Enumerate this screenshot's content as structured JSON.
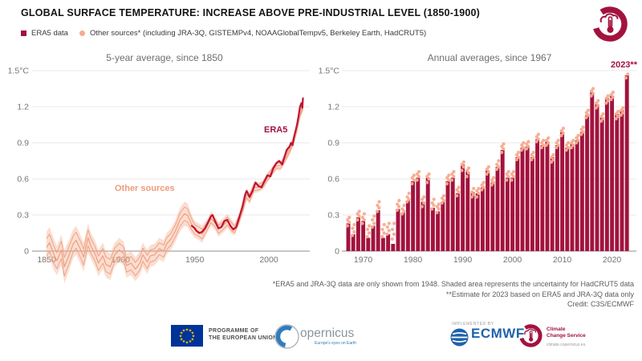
{
  "header": {
    "title": "GLOBAL SURFACE TEMPERATURE: INCREASE ABOVE PRE-INDUSTRIAL LEVEL (1850-1900)",
    "legend": [
      {
        "label": "ERA5 data",
        "marker": "square"
      },
      {
        "label": "Other sources* (including JRA-3Q, GISTEMPv4, NOAAGlobalTempv5, Berkeley Earth, HadCRUT5)",
        "marker": "dot"
      }
    ]
  },
  "colors": {
    "crimson": "#A3123E",
    "era5_line": "#C01334",
    "salmon_dot": "#F6AB8E",
    "other_line": "#EFA183",
    "band": "rgba(244,167,135,0.38)",
    "grid": "#e8e8e8",
    "axis": "#8f8f8f",
    "ecmwf_blue": "#1F63AD",
    "eu_blue": "#003399",
    "star_yellow": "#FFCC00",
    "copernicus_blue": "#2E7CC0"
  },
  "chart_data": [
    {
      "type": "line",
      "title": "5-year average, since 1850",
      "ylim": [
        -0.28,
        1.5
      ],
      "y_ticks": [
        {
          "v": 0,
          "label": "0"
        },
        {
          "v": 0.3,
          "label": "0.3"
        },
        {
          "v": 0.6,
          "label": "0.6"
        },
        {
          "v": 0.9,
          "label": "0.9"
        },
        {
          "v": 1.2,
          "label": "1.2"
        },
        {
          "v": 1.5,
          "label": "1.5°C"
        }
      ],
      "x_ticks": [
        1850,
        1900,
        1950,
        2000
      ],
      "era5_label": "ERA5",
      "other_label": "Other sources",
      "series": [
        {
          "name": "ERA5",
          "points": [
            [
              1948,
              0.21
            ],
            [
              1950,
              0.19
            ],
            [
              1951,
              0.17
            ],
            [
              1953,
              0.15
            ],
            [
              1955,
              0.16
            ],
            [
              1957,
              0.19
            ],
            [
              1959,
              0.24
            ],
            [
              1961,
              0.29
            ],
            [
              1962,
              0.3
            ],
            [
              1964,
              0.24
            ],
            [
              1966,
              0.19
            ],
            [
              1968,
              0.2
            ],
            [
              1970,
              0.25
            ],
            [
              1972,
              0.26
            ],
            [
              1974,
              0.21
            ],
            [
              1976,
              0.18
            ],
            [
              1978,
              0.2
            ],
            [
              1980,
              0.28
            ],
            [
              1982,
              0.36
            ],
            [
              1984,
              0.47
            ],
            [
              1985,
              0.5
            ],
            [
              1987,
              0.45
            ],
            [
              1989,
              0.5
            ],
            [
              1991,
              0.57
            ],
            [
              1993,
              0.54
            ],
            [
              1995,
              0.53
            ],
            [
              1997,
              0.58
            ],
            [
              1999,
              0.63
            ],
            [
              2001,
              0.62
            ],
            [
              2003,
              0.69
            ],
            [
              2005,
              0.73
            ],
            [
              2007,
              0.75
            ],
            [
              2009,
              0.72
            ],
            [
              2010,
              0.76
            ],
            [
              2012,
              0.84
            ],
            [
              2014,
              0.87
            ],
            [
              2015,
              0.9
            ],
            [
              2016,
              0.88
            ],
            [
              2017,
              0.95
            ],
            [
              2018,
              1.0
            ],
            [
              2019,
              1.05
            ],
            [
              2020,
              1.12
            ],
            [
              2021,
              1.2
            ],
            [
              2022,
              1.23
            ],
            [
              2022.6,
              1.19
            ],
            [
              2023,
              1.27
            ]
          ]
        },
        {
          "name": "Other sources (value, uncertainty)",
          "points": [
            [
              1850,
              0.03,
              0.13
            ],
            [
              1852,
              0.07,
              0.13
            ],
            [
              1855,
              -0.03,
              0.13
            ],
            [
              1857,
              -0.08,
              0.12
            ],
            [
              1860,
              0.01,
              0.13
            ],
            [
              1862,
              -0.13,
              0.14
            ],
            [
              1865,
              -0.04,
              0.13
            ],
            [
              1868,
              0.06,
              0.12
            ],
            [
              1870,
              0.09,
              0.12
            ],
            [
              1873,
              0.01,
              0.12
            ],
            [
              1875,
              -0.05,
              0.12
            ],
            [
              1878,
              0.11,
              0.12
            ],
            [
              1880,
              0.04,
              0.11
            ],
            [
              1883,
              -0.03,
              0.11
            ],
            [
              1885,
              -0.1,
              0.11
            ],
            [
              1888,
              -0.04,
              0.11
            ],
            [
              1890,
              -0.11,
              0.11
            ],
            [
              1893,
              -0.13,
              0.11
            ],
            [
              1896,
              -0.03,
              0.1
            ],
            [
              1899,
              0.01,
              0.1
            ],
            [
              1902,
              -0.02,
              0.1
            ],
            [
              1904,
              -0.12,
              0.1
            ],
            [
              1907,
              -0.1,
              0.1
            ],
            [
              1910,
              -0.15,
              0.1
            ],
            [
              1913,
              -0.1,
              0.1
            ],
            [
              1915,
              -0.03,
              0.1
            ],
            [
              1918,
              -0.09,
              0.1
            ],
            [
              1920,
              -0.04,
              0.09
            ],
            [
              1923,
              -0.03,
              0.09
            ],
            [
              1926,
              0.02,
              0.09
            ],
            [
              1929,
              0.0,
              0.09
            ],
            [
              1931,
              0.06,
              0.09
            ],
            [
              1934,
              0.1,
              0.09
            ],
            [
              1937,
              0.17,
              0.09
            ],
            [
              1940,
              0.26,
              0.1
            ],
            [
              1943,
              0.31,
              0.1
            ],
            [
              1945,
              0.3,
              0.1
            ],
            [
              1948,
              0.22,
              0.08
            ],
            [
              1950,
              0.18,
              0.07
            ],
            [
              1953,
              0.16,
              0.07
            ],
            [
              1955,
              0.14,
              0.07
            ],
            [
              1958,
              0.2,
              0.06
            ],
            [
              1961,
              0.27,
              0.06
            ],
            [
              1964,
              0.23,
              0.06
            ],
            [
              1966,
              0.18,
              0.06
            ],
            [
              1969,
              0.21,
              0.06
            ],
            [
              1972,
              0.25,
              0.06
            ],
            [
              1975,
              0.2,
              0.06
            ],
            [
              1977,
              0.18,
              0.05
            ],
            [
              1980,
              0.27,
              0.05
            ],
            [
              1983,
              0.38,
              0.05
            ],
            [
              1985,
              0.47,
              0.05
            ],
            [
              1987,
              0.44,
              0.05
            ],
            [
              1990,
              0.53,
              0.05
            ],
            [
              1993,
              0.53,
              0.04
            ],
            [
              1996,
              0.55,
              0.04
            ],
            [
              1999,
              0.61,
              0.04
            ],
            [
              2002,
              0.66,
              0.04
            ],
            [
              2005,
              0.71,
              0.04
            ],
            [
              2008,
              0.71,
              0.04
            ],
            [
              2011,
              0.77,
              0.04
            ],
            [
              2014,
              0.84,
              0.04
            ],
            [
              2017,
              0.93,
              0.04
            ],
            [
              2019,
              1.02,
              0.04
            ],
            [
              2021,
              1.14,
              0.04
            ],
            [
              2023,
              1.2,
              0.04
            ]
          ]
        }
      ]
    },
    {
      "type": "bar",
      "title": "Annual averages, since 1967",
      "start_year": 1967,
      "end_year": 2023,
      "annotation_2023": "2023**",
      "ylim": [
        0,
        1.5
      ],
      "y_ticks": [
        {
          "v": 0,
          "label": "0"
        },
        {
          "v": 0.3,
          "label": "0.3"
        },
        {
          "v": 0.6,
          "label": "0.6"
        },
        {
          "v": 0.9,
          "label": "0.9"
        },
        {
          "v": 1.2,
          "label": "1.2"
        },
        {
          "v": 1.5,
          "label": "1.5°C"
        }
      ],
      "x_ticks": [
        1970,
        1980,
        1990,
        2000,
        2010,
        2020
      ],
      "values": [
        0.23,
        0.14,
        0.28,
        0.25,
        0.11,
        0.21,
        0.34,
        0.11,
        0.14,
        0.06,
        0.35,
        0.32,
        0.42,
        0.58,
        0.61,
        0.41,
        0.61,
        0.36,
        0.33,
        0.41,
        0.58,
        0.61,
        0.48,
        0.72,
        0.66,
        0.49,
        0.48,
        0.53,
        0.67,
        0.57,
        0.7,
        0.84,
        0.61,
        0.61,
        0.78,
        0.86,
        0.87,
        0.78,
        0.93,
        0.88,
        0.91,
        0.78,
        0.88,
        0.99,
        0.86,
        0.89,
        0.92,
        0.99,
        1.13,
        1.32,
        1.22,
        1.11,
        1.27,
        1.29,
        1.14,
        1.17,
        1.46
      ],
      "other_dots": [
        [
          0.21,
          0.24,
          0.26,
          0.28
        ],
        [
          0.13,
          0.16,
          0.19,
          0.22
        ],
        [
          0.26,
          0.29,
          0.31,
          0.33
        ],
        [
          0.23,
          0.26,
          0.28,
          0.31
        ],
        [
          0.12,
          0.15,
          0.18,
          0.21
        ],
        [
          0.2,
          0.23,
          0.26,
          0.29
        ],
        [
          0.33,
          0.36,
          0.38,
          0.41
        ],
        [
          0.12,
          0.15,
          0.18,
          0.22
        ],
        [
          0.14,
          0.17,
          0.2,
          0.23
        ],
        [
          0.1,
          0.14,
          0.18,
          0.23
        ],
        [
          0.34,
          0.37,
          0.39,
          0.42
        ],
        [
          0.31,
          0.33,
          0.35,
          0.38
        ],
        [
          0.41,
          0.43,
          0.45,
          0.48
        ],
        [
          0.56,
          0.59,
          0.61,
          0.63
        ],
        [
          0.59,
          0.62,
          0.64,
          0.66
        ],
        [
          0.37,
          0.4,
          0.43,
          0.45
        ],
        [
          0.57,
          0.6,
          0.62,
          0.64
        ],
        [
          0.35,
          0.38,
          0.4,
          0.43
        ],
        [
          0.32,
          0.35,
          0.37,
          0.39
        ],
        [
          0.4,
          0.42,
          0.44,
          0.46
        ],
        [
          0.56,
          0.59,
          0.61,
          0.63
        ],
        [
          0.59,
          0.62,
          0.64,
          0.66
        ],
        [
          0.46,
          0.49,
          0.51,
          0.53
        ],
        [
          0.67,
          0.7,
          0.72,
          0.74
        ],
        [
          0.62,
          0.65,
          0.67,
          0.69
        ],
        [
          0.45,
          0.47,
          0.49,
          0.52
        ],
        [
          0.45,
          0.48,
          0.5,
          0.52
        ],
        [
          0.51,
          0.53,
          0.55,
          0.57
        ],
        [
          0.64,
          0.66,
          0.68,
          0.7
        ],
        [
          0.55,
          0.57,
          0.59,
          0.61
        ],
        [
          0.68,
          0.7,
          0.72,
          0.75
        ],
        [
          0.82,
          0.85,
          0.87,
          0.89
        ],
        [
          0.59,
          0.62,
          0.64,
          0.66
        ],
        [
          0.59,
          0.62,
          0.64,
          0.66
        ],
        [
          0.76,
          0.78,
          0.8,
          0.82
        ],
        [
          0.84,
          0.86,
          0.88,
          0.9
        ],
        [
          0.85,
          0.87,
          0.89,
          0.91
        ],
        [
          0.76,
          0.78,
          0.8,
          0.82
        ],
        [
          0.91,
          0.93,
          0.95,
          0.97
        ],
        [
          0.86,
          0.88,
          0.9,
          0.92
        ],
        [
          0.88,
          0.9,
          0.92,
          0.94
        ],
        [
          0.74,
          0.76,
          0.78,
          0.8
        ],
        [
          0.86,
          0.88,
          0.9,
          0.92
        ],
        [
          0.96,
          0.98,
          1.0,
          1.02
        ],
        [
          0.84,
          0.86,
          0.88,
          0.9
        ],
        [
          0.86,
          0.88,
          0.9,
          0.92
        ],
        [
          0.9,
          0.92,
          0.94,
          0.96
        ],
        [
          0.97,
          0.99,
          1.01,
          1.03
        ],
        [
          1.11,
          1.13,
          1.15,
          1.17
        ],
        [
          1.29,
          1.31,
          1.33,
          1.35
        ],
        [
          1.19,
          1.21,
          1.23,
          1.25
        ],
        [
          1.08,
          1.1,
          1.12,
          1.14
        ],
        [
          1.23,
          1.25,
          1.27,
          1.29
        ],
        [
          1.26,
          1.28,
          1.3,
          1.32
        ],
        [
          1.1,
          1.12,
          1.14,
          1.16
        ],
        [
          1.13,
          1.15,
          1.17,
          1.19
        ],
        [
          1.44,
          1.47
        ]
      ]
    }
  ],
  "footnotes": [
    "*ERA5 and JRA-3Q data are only shown from 1948. Shaded area represents the uncertainty for HadCRUT5 data",
    "**Estimate for 2023 based on ERA5 and JRA-3Q data only",
    "Credit: C3S/ECMWF"
  ],
  "footer": {
    "eu": {
      "line1": "PROGRAMME OF",
      "line2": "THE EUROPEAN UNION"
    },
    "copernicus": {
      "name_rest": "opernicus",
      "tagline": "Europe's eyes on Earth"
    },
    "ecmwf": {
      "implemented_by": "IMPLEMENTED BY",
      "name": "ECMWF"
    },
    "c3s": {
      "line1": "Climate",
      "line2": "Change Service",
      "url": "climate.copernicus.eu"
    }
  }
}
